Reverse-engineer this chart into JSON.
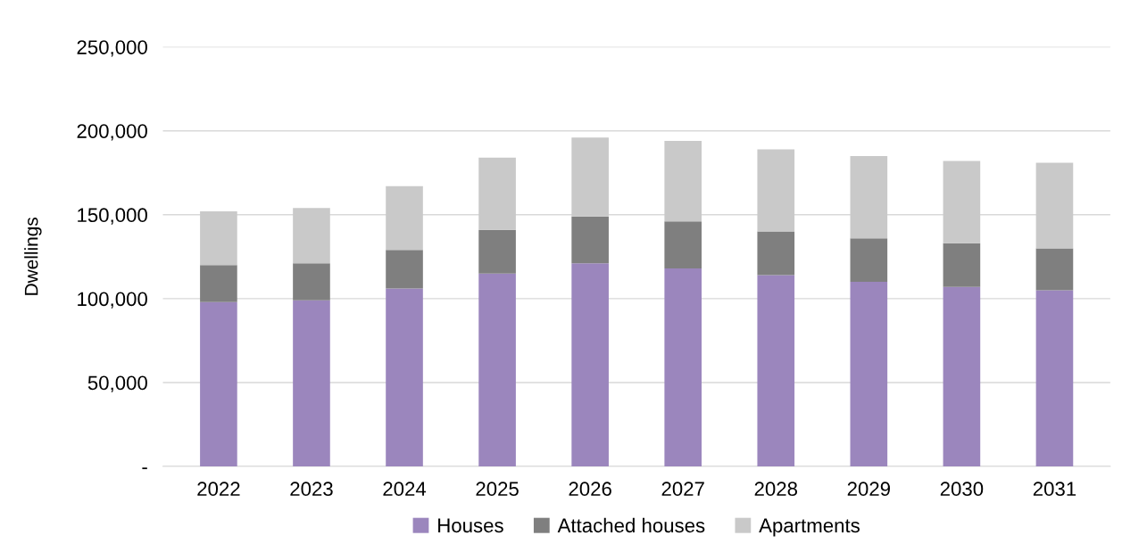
{
  "chart_data": {
    "type": "bar",
    "stacked": true,
    "ylabel": "Dwellings",
    "categories": [
      "2022",
      "2023",
      "2024",
      "2025",
      "2026",
      "2027",
      "2028",
      "2029",
      "2030",
      "2031"
    ],
    "series": [
      {
        "name": "Houses",
        "color": "#9b86bd",
        "values": [
          98000,
          99000,
          106000,
          115000,
          121000,
          118000,
          114000,
          110000,
          107000,
          105000
        ]
      },
      {
        "name": "Attached houses",
        "color": "#7f7f7f",
        "values": [
          22000,
          22000,
          23000,
          26000,
          28000,
          28000,
          26000,
          26000,
          26000,
          25000
        ]
      },
      {
        "name": "Apartments",
        "color": "#c9c9c9",
        "values": [
          32000,
          33000,
          38000,
          43000,
          47000,
          48000,
          49000,
          49000,
          49000,
          51000
        ]
      }
    ],
    "ylim": [
      0,
      250000
    ],
    "yticks": [
      {
        "value": 0,
        "label": "-"
      },
      {
        "value": 50000,
        "label": "50,000"
      },
      {
        "value": 100000,
        "label": "100,000"
      },
      {
        "value": 150000,
        "label": "150,000"
      },
      {
        "value": 200000,
        "label": "200,000"
      },
      {
        "value": 250000,
        "label": "250,000"
      }
    ],
    "grid": "y",
    "legend": "bottom"
  }
}
